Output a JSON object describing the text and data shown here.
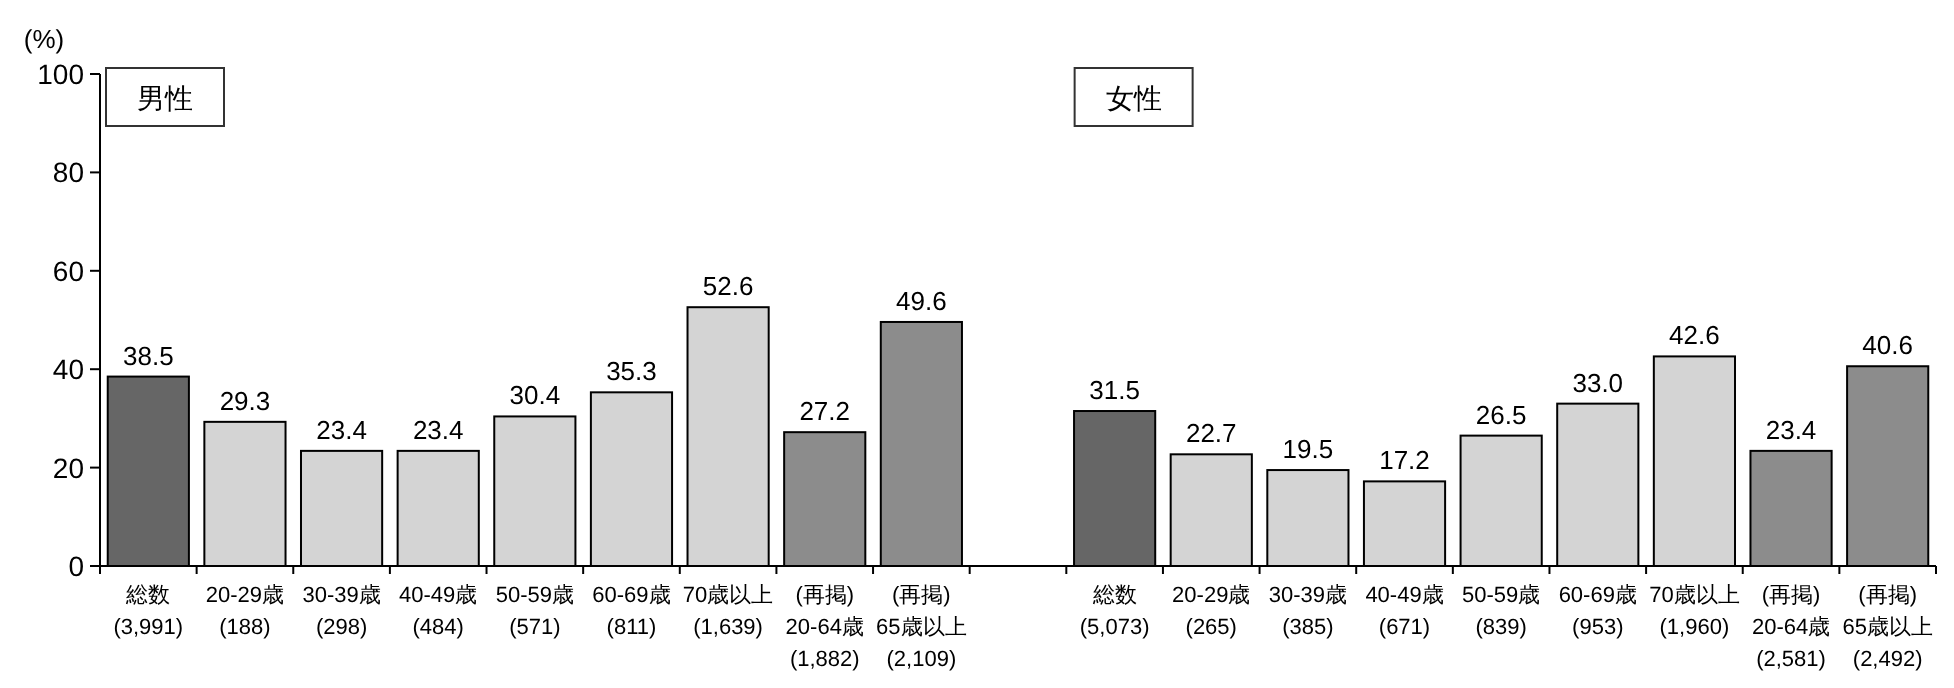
{
  "chart_data": {
    "type": "bar",
    "ylabel": "(%)",
    "categories": [
      "総数\n(3,991)",
      "20-29歳\n(188)",
      "30-39歳\n(298)",
      "40-49歳\n(484)",
      "50-59歳\n(571)",
      "60-69歳\n(811)",
      "70歳以上\n(1,639)",
      "(再掲)\n20-64歳\n(1,882)",
      "(再掲)\n65歳以上\n(2,109)",
      null,
      "総数\n(5,073)",
      "20-29歳\n(265)",
      "30-39歳\n(385)",
      "40-49歳\n(671)",
      "50-59歳\n(839)",
      "60-69歳\n(953)",
      "70歳以上\n(1,960)",
      "(再掲)\n20-64歳\n(2,581)",
      "(再掲)\n65歳以上\n(2,492)"
    ],
    "values": [
      38.5,
      29.3,
      23.4,
      23.4,
      30.4,
      35.3,
      52.6,
      27.2,
      49.6,
      null,
      31.5,
      22.7,
      19.5,
      17.2,
      26.5,
      33.0,
      42.6,
      23.4,
      40.6
    ],
    "colors": [
      "#666666",
      "#d4d4d4",
      "#d4d4d4",
      "#d4d4d4",
      "#d4d4d4",
      "#d4d4d4",
      "#d4d4d4",
      "#8c8c8c",
      "#8c8c8c",
      null,
      "#666666",
      "#d4d4d4",
      "#d4d4d4",
      "#d4d4d4",
      "#d4d4d4",
      "#d4d4d4",
      "#d4d4d4",
      "#8c8c8c",
      "#8c8c8c"
    ],
    "value_labels": [
      "38.5",
      "29.3",
      "23.4",
      "23.4",
      "30.4",
      "35.3",
      "52.6",
      "27.2",
      "49.6",
      null,
      "31.5",
      "22.7",
      "19.5",
      "17.2",
      "26.5",
      "33.0",
      "42.6",
      "23.4",
      "40.6"
    ],
    "ylim": [
      0,
      100
    ],
    "yticks": [
      0,
      20,
      40,
      60,
      80,
      100
    ],
    "annotations": [
      "男性",
      "女性"
    ],
    "grid": false
  }
}
